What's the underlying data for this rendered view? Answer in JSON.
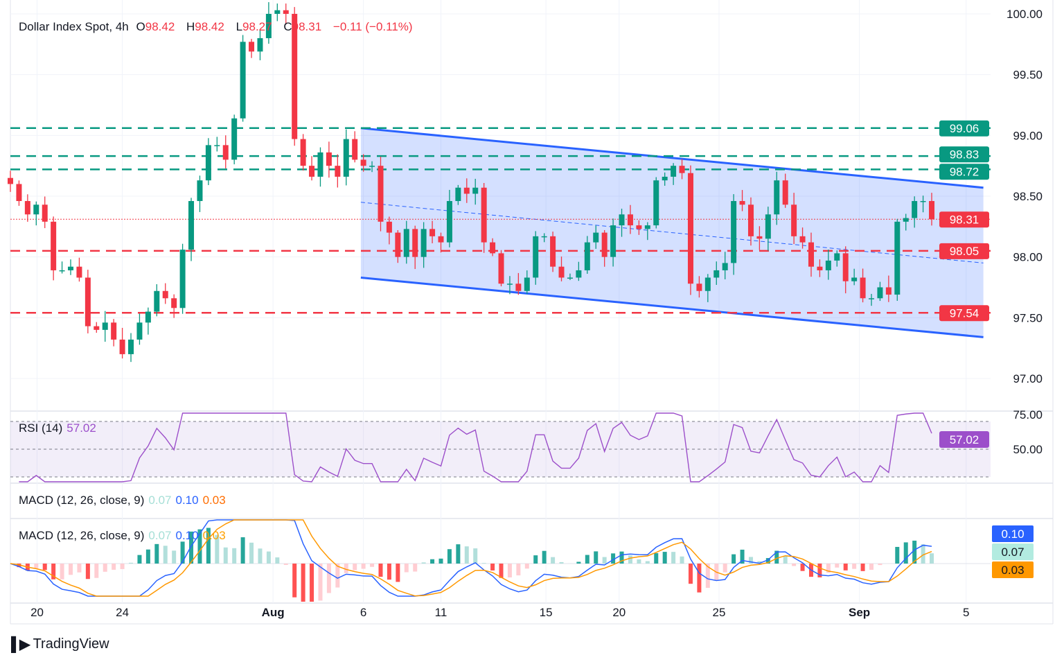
{
  "header": {
    "symbol": "Dollar Index Spot, 4h",
    "o_label": "O",
    "open": "98.42",
    "h_label": "H",
    "high": "98.42",
    "l_label": "L",
    "low": "98.27",
    "c_label": "C",
    "close": "98.31",
    "change": "−0.11 (−0.11%)"
  },
  "rsi_legend": {
    "name": "RSI (14)",
    "value": "57.02"
  },
  "macd_legend": {
    "name": "MACD (12, 26, close, 9)",
    "hist": "0.07",
    "macd": "0.10",
    "signal": "0.03"
  },
  "logo": {
    "text": "TradingView"
  },
  "colors": {
    "up": "#089981",
    "down": "#f23645",
    "channel": "#2962ff",
    "rsi": "#9c4fca",
    "macd": "#2962ff",
    "signal": "#ff9800",
    "hist_up": "#26a69a",
    "hist_up_light": "#b2dfdb",
    "hist_down": "#ff5252",
    "hist_down_light": "#ffcdd2"
  },
  "chart_data": {
    "type": "candlestick",
    "title": "Dollar Index Spot, 4h",
    "ylim": [
      96.7,
      100.1
    ],
    "y_ticks": [
      "100.00",
      "99.50",
      "99.00",
      "98.50",
      "98.00",
      "97.50",
      "97.00"
    ],
    "x_ticks": [
      {
        "label": "20",
        "at": 3.1
      },
      {
        "label": "24",
        "at": 13
      },
      {
        "label": "Aug",
        "at": 30.5
      },
      {
        "label": "6",
        "at": 41
      },
      {
        "label": "11",
        "at": 50
      },
      {
        "label": "15",
        "at": 62.2
      },
      {
        "label": "20",
        "at": 70.7
      },
      {
        "label": "25",
        "at": 82.3
      },
      {
        "label": "Sep",
        "at": 98.6
      },
      {
        "label": "5",
        "at": 111
      }
    ],
    "closes": [
      98.6,
      98.46,
      98.35,
      98.43,
      98.29,
      97.89,
      97.89,
      97.92,
      97.83,
      97.43,
      97.4,
      97.46,
      97.32,
      97.2,
      97.32,
      97.46,
      97.55,
      97.72,
      97.66,
      97.58,
      98.06,
      98.46,
      98.63,
      98.92,
      98.92,
      98.8,
      99.14,
      99.77,
      99.69,
      99.8,
      100.0,
      100.03,
      100.0,
      98.97,
      98.75,
      98.66,
      98.86,
      98.75,
      98.66,
      98.97,
      98.8,
      98.75,
      98.75,
      98.29,
      98.2,
      98.0,
      98.23,
      98.0,
      98.23,
      98.17,
      98.12,
      98.46,
      98.57,
      98.52,
      98.57,
      98.12,
      98.03,
      97.78,
      97.78,
      97.72,
      97.83,
      98.17,
      98.17,
      97.92,
      97.83,
      97.83,
      97.89,
      98.12,
      98.2,
      98.0,
      98.26,
      98.35,
      98.26,
      98.23,
      98.26,
      98.63,
      98.66,
      98.75,
      98.69,
      97.78,
      97.72,
      97.83,
      97.89,
      97.95,
      98.46,
      98.43,
      98.17,
      98.15,
      98.35,
      98.63,
      98.43,
      98.17,
      98.12,
      97.92,
      97.89,
      97.97,
      98.03,
      97.8,
      97.83,
      97.66,
      97.66,
      97.75,
      97.69,
      98.29,
      98.32,
      98.46,
      98.46,
      98.31
    ],
    "horizontal_levels": [
      {
        "value": 99.06,
        "label": "99.06",
        "color": "#089981"
      },
      {
        "value": 98.83,
        "label": "98.83",
        "color": "#089981"
      },
      {
        "value": 98.72,
        "label": "98.72",
        "color": "#089981"
      },
      {
        "value": 98.05,
        "label": "98.05",
        "color": "#f23645"
      },
      {
        "value": 97.54,
        "label": "97.54",
        "color": "#f23645"
      }
    ],
    "last_price": {
      "value": 98.31,
      "label": "98.31"
    },
    "channel": {
      "start": 40.7,
      "end": 113,
      "upper": [
        99.06,
        98.57
      ],
      "middle": [
        98.45,
        97.95
      ],
      "lower": [
        97.83,
        97.34
      ]
    },
    "rsi": {
      "ticks": [
        "75.00",
        "50.00"
      ],
      "bands": [
        70,
        50,
        30
      ],
      "last_label": "57.02"
    },
    "macd": {
      "last_labels": [
        "0.10",
        "0.07",
        "0.03"
      ]
    }
  }
}
